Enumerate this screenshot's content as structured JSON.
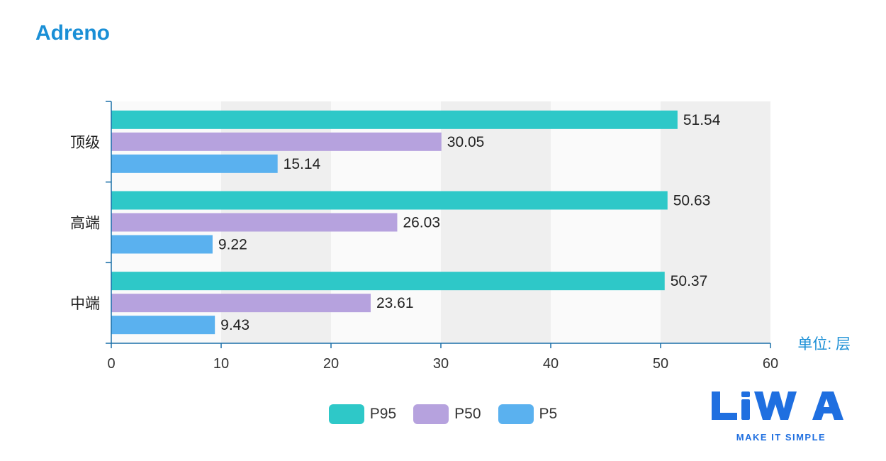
{
  "title": "Adreno",
  "unit_label": "单位: 层",
  "colors": {
    "title": "#1a8fd6",
    "P95": "#2ec8c8",
    "P50": "#b6a2de",
    "P5": "#5ab1ef",
    "band": "#efefef",
    "axis": "#1a6fa8"
  },
  "logo": {
    "wordmark": "LiWA",
    "tagline": "MAKE IT SIMPLE"
  },
  "chart_data": {
    "type": "bar",
    "orientation": "horizontal",
    "categories": [
      "顶级",
      "高端",
      "中端"
    ],
    "series": [
      {
        "name": "P95",
        "values": [
          51.54,
          50.63,
          50.37
        ]
      },
      {
        "name": "P50",
        "values": [
          30.05,
          26.03,
          23.61
        ]
      },
      {
        "name": "P5",
        "values": [
          15.14,
          9.22,
          9.43
        ]
      }
    ],
    "xlim": [
      0,
      60
    ],
    "xticks": [
      0,
      10,
      20,
      30,
      40,
      50,
      60
    ],
    "grid": "alternating-bands",
    "legend": "bottom-center"
  }
}
